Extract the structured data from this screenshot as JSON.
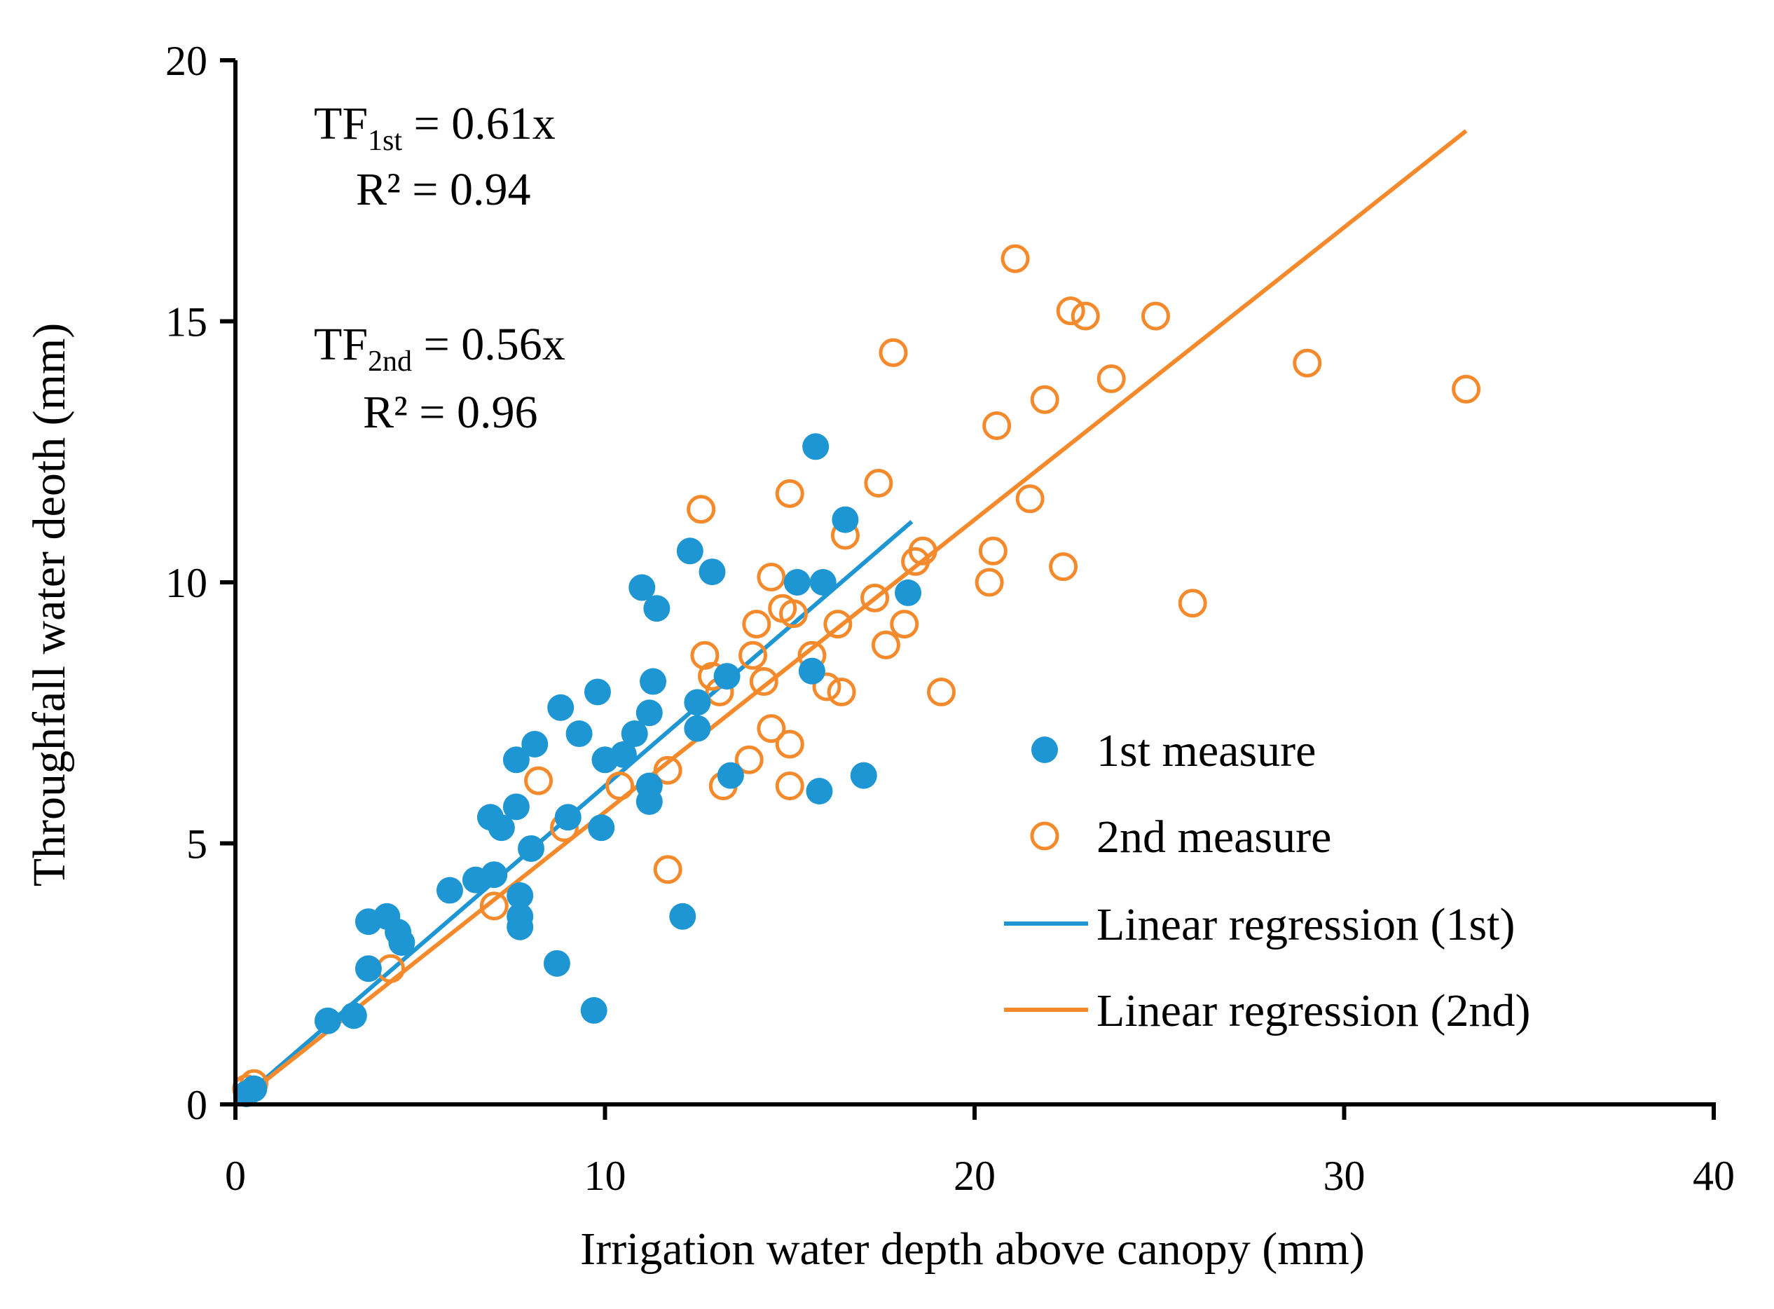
{
  "chart_data": {
    "type": "scatter",
    "xlabel": "Irrigation water depth above canopy (mm)",
    "ylabel": "Throughfall water deoth (mm)",
    "xlim": [
      0,
      40
    ],
    "ylim": [
      0,
      20
    ],
    "x_ticks": [
      "0",
      "10",
      "20",
      "30",
      "40"
    ],
    "y_ticks": [
      "0",
      "5",
      "10",
      "15",
      "20"
    ],
    "grid": false,
    "legend_position": "bottom-right",
    "annotations": {
      "eq1": {
        "lhs": "TF",
        "sub": "1st",
        "rhs": " = 0.61x",
        "r2": "R² = 0.94"
      },
      "eq2": {
        "lhs": "TF",
        "sub": "2nd",
        "rhs": " = 0.56x",
        "r2": "R² = 0.96"
      }
    },
    "series": [
      {
        "name": "1st measure",
        "marker": "filled-circle",
        "color": "#1f96d4",
        "points": [
          [
            0.3,
            0.2
          ],
          [
            0.5,
            0.3
          ],
          [
            2.5,
            1.6
          ],
          [
            3.2,
            1.7
          ],
          [
            3.6,
            2.6
          ],
          [
            3.6,
            3.5
          ],
          [
            4.1,
            3.6
          ],
          [
            4.4,
            3.3
          ],
          [
            4.5,
            3.1
          ],
          [
            5.8,
            4.1
          ],
          [
            6.5,
            4.3
          ],
          [
            6.9,
            5.5
          ],
          [
            7.0,
            4.4
          ],
          [
            7.2,
            5.3
          ],
          [
            7.6,
            5.7
          ],
          [
            7.6,
            6.6
          ],
          [
            7.7,
            4.0
          ],
          [
            7.7,
            3.6
          ],
          [
            7.7,
            3.4
          ],
          [
            8.0,
            4.9
          ],
          [
            8.1,
            6.9
          ],
          [
            8.7,
            2.7
          ],
          [
            8.8,
            7.6
          ],
          [
            9.0,
            5.5
          ],
          [
            9.3,
            7.1
          ],
          [
            9.7,
            1.8
          ],
          [
            9.8,
            7.9
          ],
          [
            9.9,
            5.3
          ],
          [
            10.0,
            6.6
          ],
          [
            10.5,
            6.7
          ],
          [
            10.8,
            7.1
          ],
          [
            11.0,
            9.9
          ],
          [
            11.2,
            7.5
          ],
          [
            11.2,
            5.8
          ],
          [
            11.2,
            6.1
          ],
          [
            11.3,
            8.1
          ],
          [
            11.4,
            9.5
          ],
          [
            12.1,
            3.6
          ],
          [
            12.3,
            10.6
          ],
          [
            12.5,
            7.2
          ],
          [
            12.5,
            7.7
          ],
          [
            12.9,
            10.2
          ],
          [
            13.3,
            8.2
          ],
          [
            13.4,
            6.3
          ],
          [
            15.2,
            10.0
          ],
          [
            15.6,
            8.3
          ],
          [
            15.7,
            12.6
          ],
          [
            15.8,
            6.0
          ],
          [
            15.9,
            10.0
          ],
          [
            16.5,
            11.2
          ],
          [
            17.0,
            6.3
          ],
          [
            18.2,
            9.8
          ]
        ]
      },
      {
        "name": "2nd measure",
        "marker": "open-circle",
        "color": "#f58a2d",
        "points": [
          [
            0.3,
            0.3
          ],
          [
            0.5,
            0.4
          ],
          [
            4.2,
            2.6
          ],
          [
            7.0,
            3.8
          ],
          [
            8.2,
            6.2
          ],
          [
            8.9,
            5.3
          ],
          [
            10.4,
            6.1
          ],
          [
            11.7,
            6.4
          ],
          [
            11.7,
            4.5
          ],
          [
            12.6,
            11.4
          ],
          [
            12.7,
            8.6
          ],
          [
            12.9,
            8.2
          ],
          [
            13.1,
            7.9
          ],
          [
            13.2,
            6.1
          ],
          [
            13.9,
            6.6
          ],
          [
            14.0,
            8.6
          ],
          [
            14.1,
            9.2
          ],
          [
            14.3,
            8.1
          ],
          [
            14.5,
            10.1
          ],
          [
            14.5,
            7.2
          ],
          [
            14.8,
            9.5
          ],
          [
            15.0,
            11.7
          ],
          [
            15.0,
            6.9
          ],
          [
            15.0,
            6.1
          ],
          [
            15.1,
            9.4
          ],
          [
            15.6,
            8.6
          ],
          [
            16.0,
            8.0
          ],
          [
            16.3,
            9.2
          ],
          [
            16.4,
            7.9
          ],
          [
            16.5,
            10.9
          ],
          [
            17.3,
            9.7
          ],
          [
            17.4,
            11.9
          ],
          [
            17.6,
            8.8
          ],
          [
            17.8,
            14.4
          ],
          [
            18.1,
            9.2
          ],
          [
            18.4,
            10.4
          ],
          [
            18.6,
            10.6
          ],
          [
            19.1,
            7.9
          ],
          [
            20.4,
            10.0
          ],
          [
            20.5,
            10.6
          ],
          [
            20.6,
            13.0
          ],
          [
            21.1,
            16.2
          ],
          [
            21.5,
            11.6
          ],
          [
            21.9,
            13.5
          ],
          [
            22.4,
            10.3
          ],
          [
            22.6,
            15.2
          ],
          [
            23.0,
            15.1
          ],
          [
            23.7,
            13.9
          ],
          [
            24.9,
            15.1
          ],
          [
            25.9,
            9.6
          ],
          [
            29.0,
            14.2
          ],
          [
            33.3,
            13.7
          ]
        ]
      }
    ],
    "regression_lines": [
      {
        "name": "Linear regression (1st)",
        "color": "#1f96d4",
        "slope": 0.61,
        "x_range": [
          0,
          18.3
        ]
      },
      {
        "name": "Linear regression (2nd)",
        "color": "#f58a2d",
        "slope": 0.56,
        "x_range": [
          0,
          33.3
        ]
      }
    ]
  }
}
